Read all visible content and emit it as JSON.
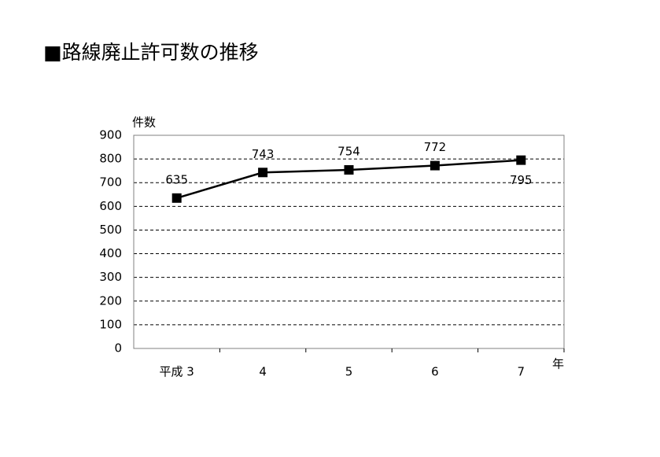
{
  "chart_data": {
    "type": "line",
    "title": "■路線廃止許可数の推移",
    "y_label": "件数",
    "x_label": "年",
    "categories": [
      "平成 3",
      "4",
      "5",
      "6",
      "7"
    ],
    "values": [
      635,
      743,
      754,
      772,
      795
    ],
    "color": "#000000",
    "ylim": [
      0,
      900
    ],
    "yticks": [
      0,
      100,
      200,
      300,
      400,
      500,
      600,
      700,
      800,
      900
    ],
    "grid": true
  }
}
